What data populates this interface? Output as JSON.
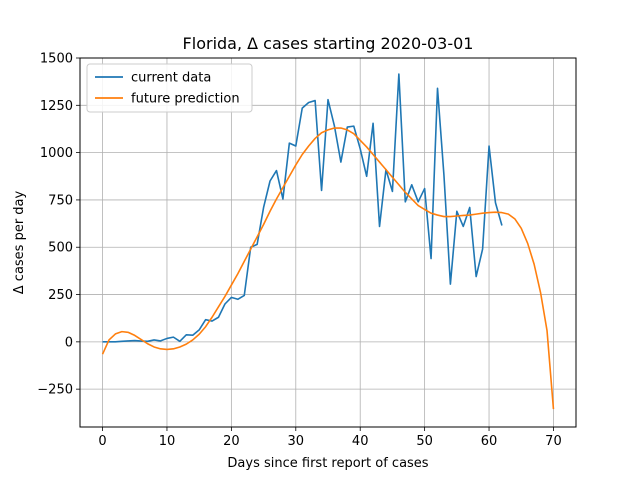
{
  "chart_data": {
    "type": "line",
    "title": "Florida, Δ cases starting 2020-03-01",
    "xlabel": "Days since first report of cases",
    "ylabel": "Δ cases per day",
    "xlim": [
      -3.5,
      73.5
    ],
    "ylim": [
      -450,
      1500
    ],
    "xticks": [
      0,
      10,
      20,
      30,
      40,
      50,
      60,
      70
    ],
    "yticks": [
      -250,
      0,
      250,
      500,
      750,
      1000,
      1250,
      1500
    ],
    "xtick_labels": [
      "0",
      "10",
      "20",
      "30",
      "40",
      "50",
      "60",
      "70"
    ],
    "ytick_labels": [
      "−250",
      "0",
      "250",
      "500",
      "750",
      "1000",
      "1250",
      "1500"
    ],
    "grid": true,
    "legend_position": "upper-left",
    "series": [
      {
        "name": "current data",
        "color": "#1f77b4",
        "x": [
          0,
          1,
          2,
          3,
          4,
          5,
          6,
          7,
          8,
          9,
          10,
          11,
          12,
          13,
          14,
          15,
          16,
          17,
          18,
          19,
          20,
          21,
          22,
          23,
          24,
          25,
          26,
          27,
          28,
          29,
          30,
          31,
          32,
          33,
          34,
          35,
          36,
          37,
          38,
          39,
          40,
          41,
          42,
          43,
          44,
          45,
          46,
          47,
          48,
          49,
          50,
          51,
          52,
          53,
          54,
          55,
          56,
          57,
          58,
          59,
          60,
          61,
          62
        ],
        "y": [
          0,
          0,
          0,
          3,
          5,
          7,
          4,
          3,
          10,
          5,
          18,
          25,
          3,
          37,
          35,
          63,
          117,
          110,
          130,
          200,
          235,
          225,
          245,
          500,
          515,
          710,
          850,
          905,
          755,
          1050,
          1035,
          1235,
          1265,
          1275,
          800,
          1280,
          1140,
          950,
          1135,
          1140,
          1020,
          875,
          1155,
          610,
          910,
          795,
          1415,
          740,
          830,
          740,
          810,
          440,
          1340,
          880,
          305,
          690,
          610,
          710,
          345,
          490,
          1035,
          735,
          615
        ]
      },
      {
        "name": "future prediction",
        "color": "#ff7f0e",
        "x": [
          0,
          1,
          2,
          3,
          4,
          5,
          6,
          7,
          8,
          9,
          10,
          11,
          12,
          13,
          14,
          15,
          16,
          17,
          18,
          19,
          20,
          21,
          22,
          23,
          24,
          25,
          26,
          27,
          28,
          29,
          30,
          31,
          32,
          33,
          34,
          35,
          36,
          37,
          38,
          39,
          40,
          41,
          42,
          43,
          44,
          45,
          46,
          47,
          48,
          49,
          50,
          51,
          52,
          53,
          54,
          55,
          56,
          57,
          58,
          59,
          60,
          61,
          62,
          63,
          64,
          65,
          66,
          67,
          68,
          69,
          70
        ],
        "y": [
          -65,
          10,
          42,
          54,
          50,
          34,
          12,
          -10,
          -27,
          -37,
          -40,
          -37,
          -27,
          -12,
          10,
          40,
          80,
          130,
          185,
          240,
          300,
          360,
          425,
          490,
          555,
          620,
          690,
          755,
          815,
          875,
          935,
          990,
          1035,
          1075,
          1105,
          1120,
          1130,
          1130,
          1120,
          1100,
          1065,
          1030,
          990,
          950,
          910,
          870,
          830,
          790,
          755,
          720,
          700,
          680,
          670,
          662,
          662,
          665,
          668,
          670,
          675,
          680,
          683,
          685,
          683,
          675,
          650,
          600,
          520,
          410,
          260,
          60,
          -355
        ]
      }
    ]
  }
}
